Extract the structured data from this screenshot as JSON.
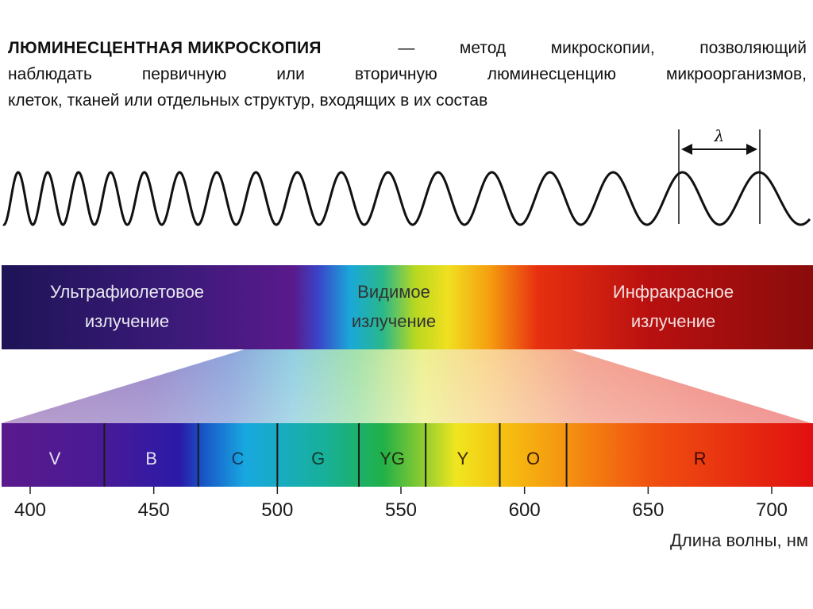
{
  "intro": {
    "term": "ЛЮМИНЕСЦЕНТНАЯ МИКРОСКОПИЯ",
    "line1_words": [
      "—",
      "метод",
      "микроскопии,",
      "позволяющий"
    ],
    "line2_words": [
      "наблюдать",
      "первичную",
      "или",
      "вторичную",
      "люминесценцию",
      "микроорганизмов,"
    ],
    "line3": "клеток, тканей или отдельных структур, входящих в их состав"
  },
  "wave": {
    "symbol": "λ"
  },
  "bands": [
    {
      "line1": "Ультрафиолетовое",
      "line2": "излучение",
      "text_color": "#e8e8f0"
    },
    {
      "line1": "Видимое",
      "line2": "излучение",
      "text_color": "#333333"
    },
    {
      "line1": "Инфракрасное",
      "line2": "излучение",
      "text_color": "#f3dede"
    }
  ],
  "segments": [
    {
      "label": "V",
      "from": 390,
      "to": 430,
      "text_color": "#e6e0f0"
    },
    {
      "label": "B",
      "from": 430,
      "to": 468,
      "text_color": "#e6e0f0"
    },
    {
      "label": "C",
      "from": 468,
      "to": 500,
      "text_color": "#123a5a"
    },
    {
      "label": "G",
      "from": 500,
      "to": 533,
      "text_color": "#123a2a"
    },
    {
      "label": "YG",
      "from": 533,
      "to": 560,
      "text_color": "#1e2a10"
    },
    {
      "label": "Y",
      "from": 560,
      "to": 590,
      "text_color": "#3a2a00"
    },
    {
      "label": "O",
      "from": 590,
      "to": 617,
      "text_color": "#3a1a00"
    },
    {
      "label": "R",
      "from": 617,
      "to": 725,
      "text_color": "#3a0a00"
    }
  ],
  "axis": {
    "ticks": [
      "400",
      "450",
      "500",
      "550",
      "600",
      "650",
      "700"
    ],
    "tick_values": [
      400,
      450,
      500,
      550,
      600,
      650,
      700
    ],
    "title": "Длина волны, нм"
  },
  "colors": {
    "uv_dark": "#1e1456",
    "violet": "#5a1a8c",
    "blue": "#2b2ab0",
    "cyan": "#1aa8d8",
    "green": "#1aa850",
    "yellow": "#f0e020",
    "orange": "#f59a10",
    "red": "#e82010",
    "ir_dark": "#8a0c0c"
  }
}
